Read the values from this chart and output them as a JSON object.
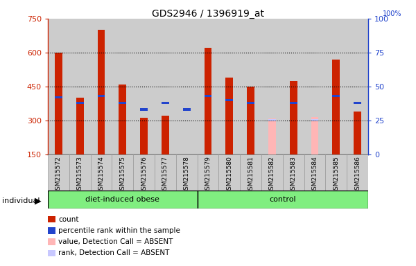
{
  "title": "GDS2946 / 1396919_at",
  "samples": [
    "GSM215572",
    "GSM215573",
    "GSM215574",
    "GSM215575",
    "GSM215576",
    "GSM215577",
    "GSM215578",
    "GSM215579",
    "GSM215580",
    "GSM215581",
    "GSM215582",
    "GSM215583",
    "GSM215584",
    "GSM215585",
    "GSM215586"
  ],
  "count_values": [
    600,
    400,
    700,
    460,
    310,
    320,
    150,
    620,
    490,
    450,
    150,
    475,
    150,
    570,
    340
  ],
  "rank_values": [
    42,
    38,
    43,
    38,
    33,
    38,
    33,
    43,
    40,
    38,
    0,
    38,
    0,
    43,
    38
  ],
  "absent_value": [
    false,
    false,
    false,
    false,
    false,
    false,
    false,
    false,
    false,
    false,
    true,
    false,
    true,
    false,
    false
  ],
  "absent_count": [
    0,
    0,
    0,
    0,
    0,
    0,
    0,
    0,
    0,
    0,
    307,
    0,
    315,
    0,
    0
  ],
  "absent_rank_pct": [
    0,
    0,
    0,
    0,
    0,
    0,
    0,
    0,
    0,
    0,
    25,
    0,
    25,
    0,
    0
  ],
  "ylim_left": [
    150,
    750
  ],
  "ylim_right": [
    0,
    100
  ],
  "yticks_left": [
    150,
    300,
    450,
    600,
    750
  ],
  "yticks_right": [
    0,
    25,
    50,
    75,
    100
  ],
  "count_color": "#cc2200",
  "rank_color": "#2244cc",
  "absent_count_color": "#ffb6b6",
  "absent_rank_color": "#c8c8ff",
  "col_bg_color": "#cccccc",
  "plot_bg_color": "#ffffff",
  "group_green": "#80ee80",
  "legend_items": [
    {
      "label": "count",
      "color": "#cc2200"
    },
    {
      "label": "percentile rank within the sample",
      "color": "#2244cc"
    },
    {
      "label": "value, Detection Call = ABSENT",
      "color": "#ffb6b6"
    },
    {
      "label": "rank, Detection Call = ABSENT",
      "color": "#c8c8ff"
    }
  ],
  "groups": [
    {
      "label": "diet-induced obese",
      "start": 0,
      "end": 7
    },
    {
      "label": "control",
      "start": 7,
      "end": 15
    }
  ]
}
